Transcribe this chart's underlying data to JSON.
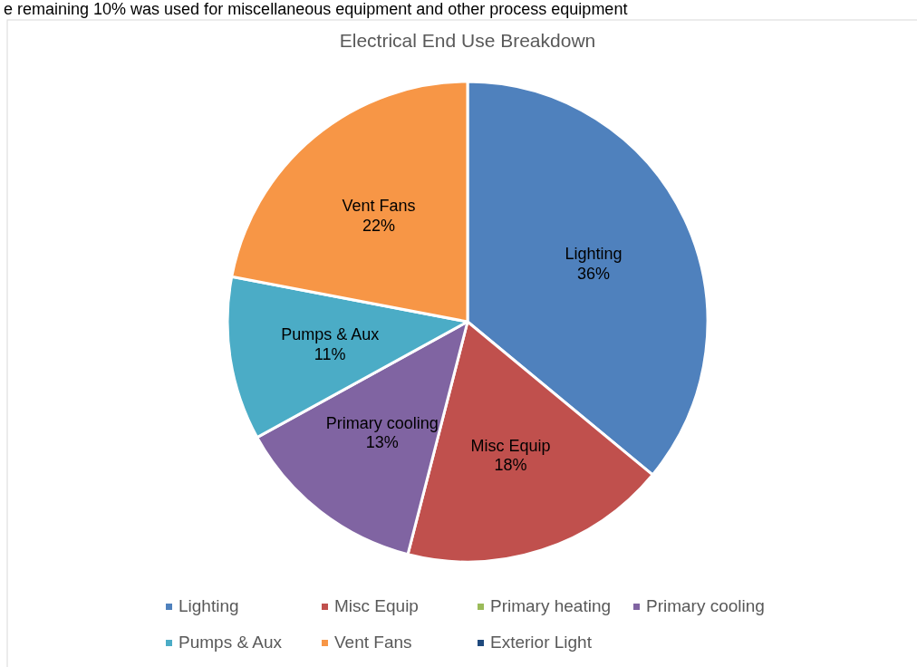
{
  "chart_data": {
    "type": "pie",
    "title": "Electrical End Use Breakdown",
    "annotations": [
      "e remaining 10% was used for miscellaneous equipment and other process equipment"
    ],
    "categories": [
      "Lighting",
      "Misc Equip",
      "Primary heating",
      "Primary cooling",
      "Pumps & Aux",
      "Vent Fans",
      "Exterior Light"
    ],
    "values": [
      36,
      18,
      0,
      13,
      11,
      22,
      0
    ],
    "colors": [
      "#4f81bd",
      "#c0504d",
      "#9bbb59",
      "#8064a2",
      "#4bacc6",
      "#f79646",
      "#1f497d"
    ],
    "value_labels": [
      "36%",
      "18%",
      null,
      "13%",
      "11%",
      "22%",
      null
    ],
    "legend": "bottom"
  }
}
